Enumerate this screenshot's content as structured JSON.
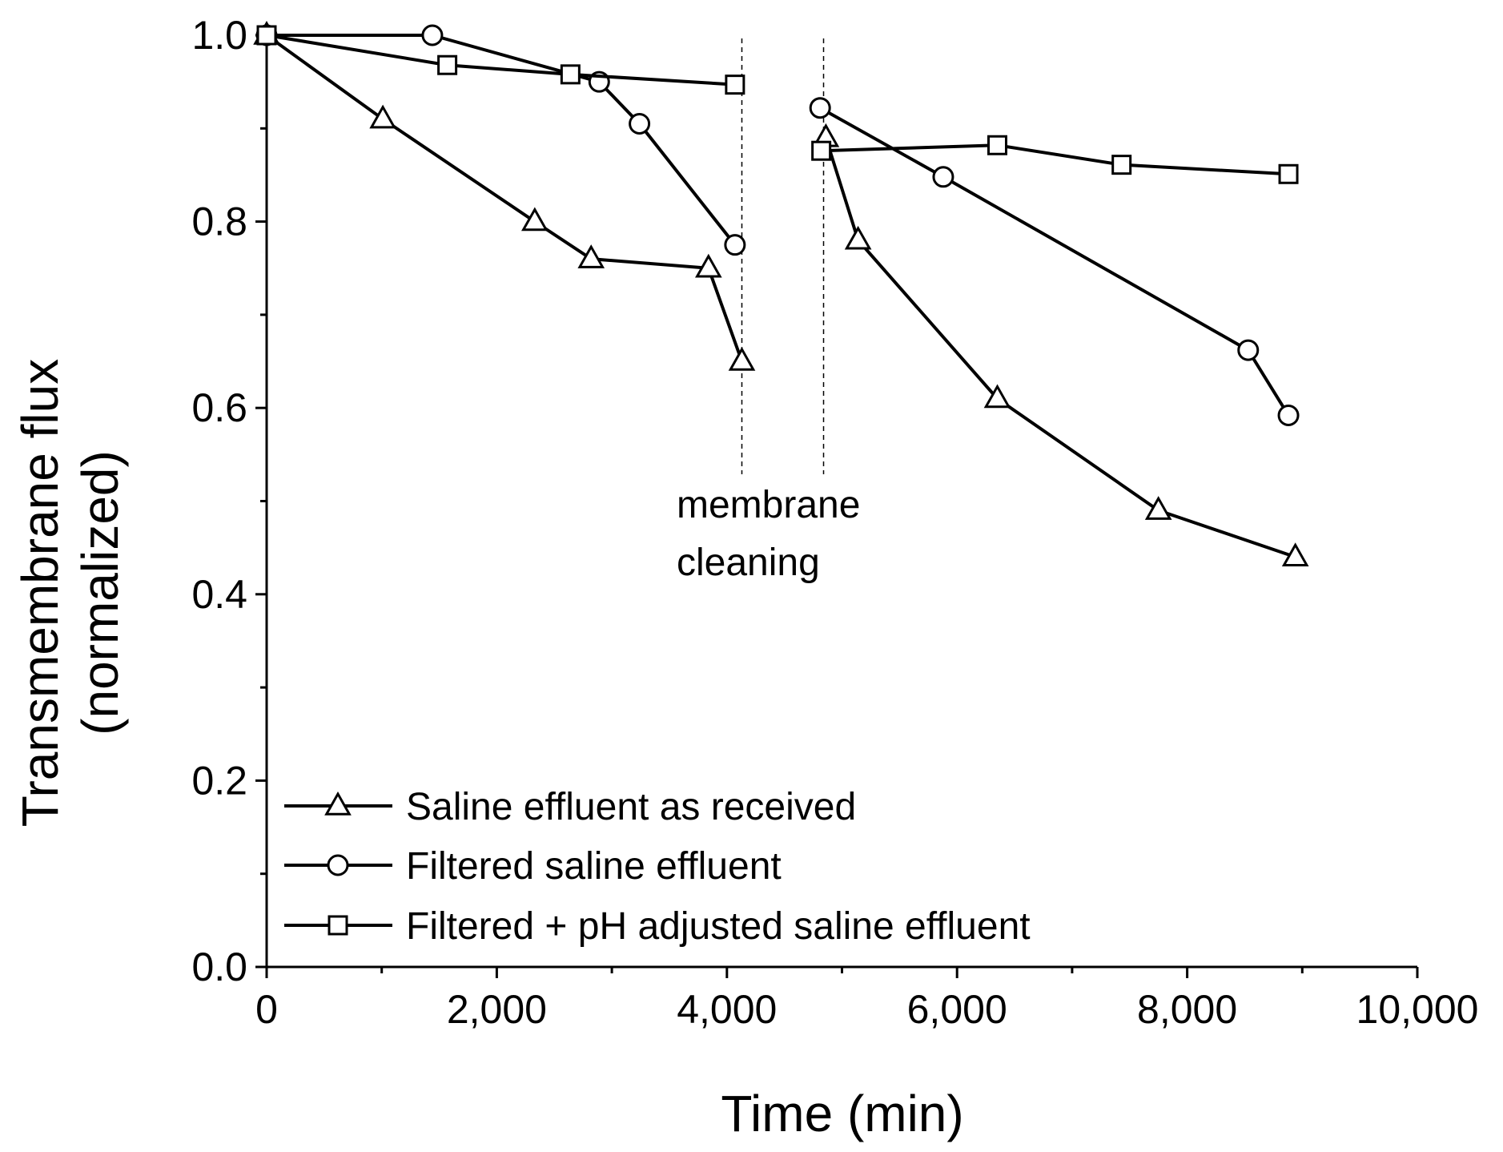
{
  "chart_data": {
    "type": "line",
    "title": "",
    "xlabel": "Time (min)",
    "ylabel_lines": [
      "Transmembrane flux",
      "(normalized)"
    ],
    "xlim": [
      0,
      10000
    ],
    "ylim": [
      0,
      1.0
    ],
    "x_ticks": [
      0,
      2000,
      4000,
      6000,
      8000,
      10000
    ],
    "x_tick_labels": [
      "0",
      "2,000",
      "4,000",
      "6,000",
      "8,000",
      "10,000"
    ],
    "y_ticks": [
      0,
      0.2,
      0.4,
      0.6,
      0.8,
      1.0
    ],
    "y_tick_labels": [
      "0.0",
      "0.2",
      "0.4",
      "0.6",
      "0.8",
      "1.0"
    ],
    "grid": false,
    "legend_position": "bottom-left",
    "annotation": {
      "lines": [
        "membrane",
        "cleaning"
      ],
      "guide_x": [
        4130,
        4840
      ]
    },
    "series": [
      {
        "name": "Saline effluent as received",
        "marker": "triangle",
        "segments": [
          [
            [
              0,
              1.0
            ],
            [
              1010,
              0.91
            ],
            [
              2330,
              0.8
            ],
            [
              2820,
              0.76
            ],
            [
              3840,
              0.75
            ],
            [
              4130,
              0.65
            ]
          ],
          [
            [
              4860,
              0.89
            ],
            [
              5140,
              0.78
            ],
            [
              6350,
              0.61
            ],
            [
              7750,
              0.49
            ],
            [
              8940,
              0.44
            ]
          ]
        ]
      },
      {
        "name": "Filtered saline effluent",
        "marker": "circle",
        "segments": [
          [
            [
              0,
              1.0
            ],
            [
              1440,
              1.0
            ],
            [
              2890,
              0.95
            ],
            [
              3240,
              0.905
            ],
            [
              4070,
              0.775
            ]
          ],
          [
            [
              4810,
              0.922
            ],
            [
              5880,
              0.848
            ],
            [
              8530,
              0.662
            ],
            [
              8880,
              0.592
            ]
          ]
        ]
      },
      {
        "name": "Filtered + pH adjusted saline effluent",
        "marker": "square",
        "segments": [
          [
            [
              0,
              1.0
            ],
            [
              1570,
              0.968
            ],
            [
              2640,
              0.958
            ],
            [
              4070,
              0.947
            ]
          ],
          [
            [
              4820,
              0.876
            ],
            [
              6350,
              0.882
            ],
            [
              7430,
              0.861
            ],
            [
              8880,
              0.851
            ]
          ]
        ]
      }
    ]
  }
}
